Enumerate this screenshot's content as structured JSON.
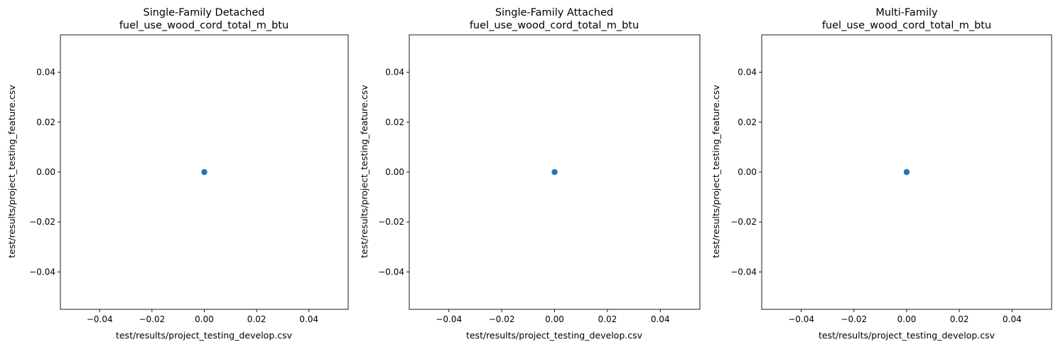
{
  "chart_data": [
    {
      "type": "scatter",
      "title": "Single-Family Detached",
      "subtitle": "fuel_use_wood_cord_total_m_btu",
      "xlabel": "test/results/project_testing_develop.csv",
      "ylabel": "test/results/project_testing_feature.csv",
      "xlim": [
        -0.055,
        0.055
      ],
      "ylim": [
        -0.055,
        0.055
      ],
      "xticks": [
        -0.04,
        -0.02,
        0.0,
        0.02,
        0.04
      ],
      "yticks": [
        -0.04,
        -0.02,
        0.0,
        0.02,
        0.04
      ],
      "xtick_labels": [
        "−0.04",
        "−0.02",
        "0.00",
        "0.02",
        "0.04"
      ],
      "ytick_labels": [
        "−0.04",
        "−0.02",
        "0.00",
        "0.02",
        "0.04"
      ],
      "grid": false,
      "color": "#1f77b4",
      "points": [
        {
          "x": 0,
          "y": 0
        }
      ]
    },
    {
      "type": "scatter",
      "title": "Single-Family Attached",
      "subtitle": "fuel_use_wood_cord_total_m_btu",
      "xlabel": "test/results/project_testing_develop.csv",
      "ylabel": "test/results/project_testing_feature.csv",
      "xlim": [
        -0.055,
        0.055
      ],
      "ylim": [
        -0.055,
        0.055
      ],
      "xticks": [
        -0.04,
        -0.02,
        0.0,
        0.02,
        0.04
      ],
      "yticks": [
        -0.04,
        -0.02,
        0.0,
        0.02,
        0.04
      ],
      "xtick_labels": [
        "−0.04",
        "−0.02",
        "0.00",
        "0.02",
        "0.04"
      ],
      "ytick_labels": [
        "−0.04",
        "−0.02",
        "0.00",
        "0.02",
        "0.04"
      ],
      "grid": false,
      "color": "#1f77b4",
      "points": [
        {
          "x": 0,
          "y": 0
        }
      ]
    },
    {
      "type": "scatter",
      "title": "Multi-Family",
      "subtitle": "fuel_use_wood_cord_total_m_btu",
      "xlabel": "test/results/project_testing_develop.csv",
      "ylabel": "test/results/project_testing_feature.csv",
      "xlim": [
        -0.055,
        0.055
      ],
      "ylim": [
        -0.055,
        0.055
      ],
      "xticks": [
        -0.04,
        -0.02,
        0.0,
        0.02,
        0.04
      ],
      "yticks": [
        -0.04,
        -0.02,
        0.0,
        0.02,
        0.04
      ],
      "xtick_labels": [
        "−0.04",
        "−0.02",
        "0.00",
        "0.02",
        "0.04"
      ],
      "ytick_labels": [
        "−0.04",
        "−0.02",
        "0.00",
        "0.02",
        "0.04"
      ],
      "grid": false,
      "color": "#1f77b4",
      "points": [
        {
          "x": 0,
          "y": 0
        }
      ]
    }
  ]
}
